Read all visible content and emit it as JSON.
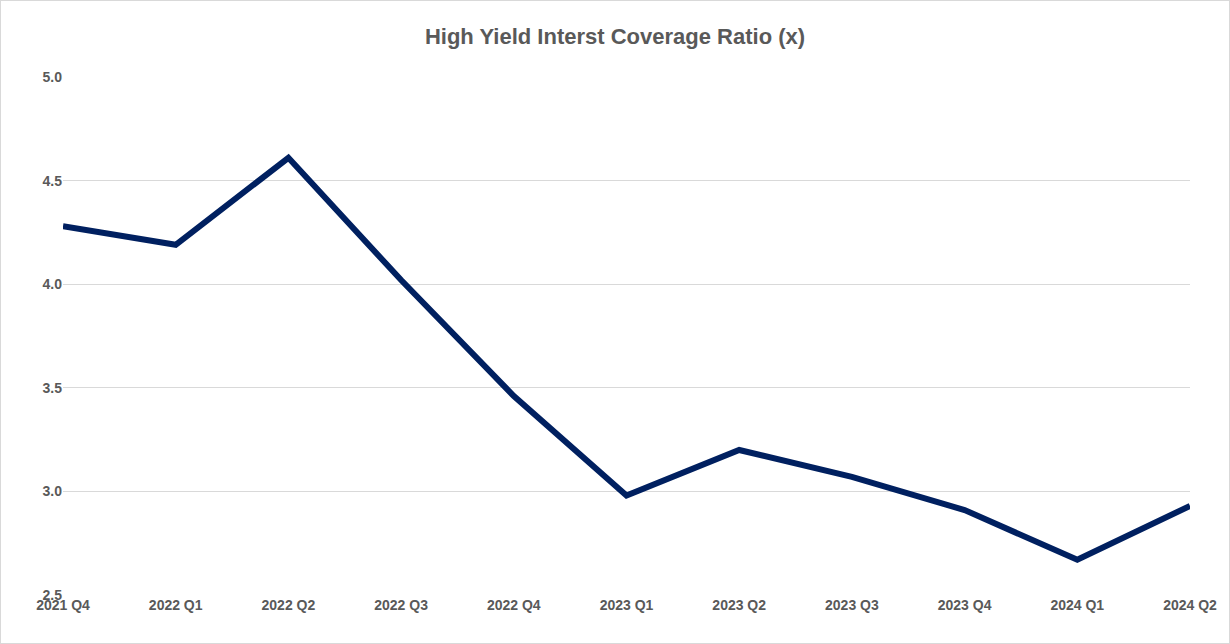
{
  "chart_data": {
    "type": "line",
    "title": "High Yield Interst Coverage Ratio (x)",
    "categories": [
      "2021 Q4",
      "2022 Q1",
      "2022 Q2",
      "2022 Q3",
      "2022 Q4",
      "2023 Q1",
      "2023 Q2",
      "2023 Q3",
      "2023 Q4",
      "2024 Q1",
      "2024 Q2"
    ],
    "values": [
      4.28,
      4.19,
      4.61,
      4.02,
      3.46,
      2.98,
      3.2,
      3.07,
      2.91,
      2.67,
      2.93
    ],
    "color": "#002060",
    "ylim": [
      2.5,
      5.0
    ],
    "yticks": [
      2.5,
      {
        "value": 3.0,
        "label": "3.0"
      },
      3.5,
      {
        "value": 4.0,
        "label": "4.0"
      },
      4.5,
      {
        "value": 5.0,
        "label": "5.0"
      }
    ],
    "grid": true
  }
}
